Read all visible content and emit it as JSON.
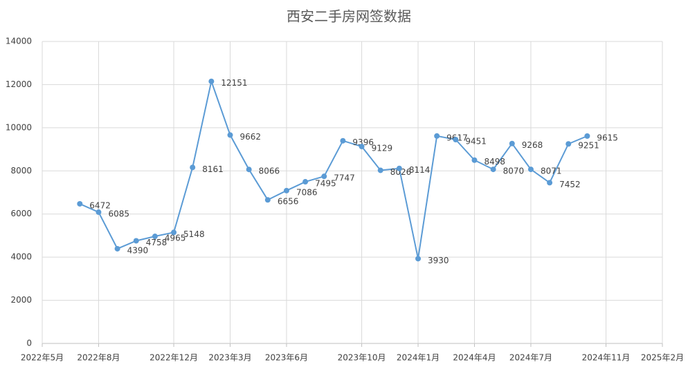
{
  "chart_data": {
    "type": "line",
    "title": "西安二手房网签数据",
    "x": [
      "2022年7月",
      "2022年8月",
      "2022年9月",
      "2022年10月",
      "2022年11月",
      "2022年12月",
      "2023年1月",
      "2023年2月",
      "2023年3月",
      "2023年4月",
      "2023年5月",
      "2023年6月",
      "2023年7月",
      "2023年8月",
      "2023年9月",
      "2023年10月",
      "2023年11月",
      "2023年12月",
      "2024年1月",
      "2024年2月",
      "2024年3月",
      "2024年4月",
      "2024年5月",
      "2024年6月",
      "2024年7月",
      "2024年8月",
      "2024年9月",
      "2024年10月"
    ],
    "values": [
      6472,
      6085,
      4390,
      4758,
      4965,
      5148,
      8161,
      12151,
      9662,
      8066,
      6656,
      7086,
      7495,
      7747,
      9396,
      9129,
      8026,
      8114,
      3930,
      9617,
      9451,
      8498,
      8070,
      9268,
      8071,
      7452,
      9251,
      9615
    ],
    "color": "#5b9bd5",
    "xlim": [
      "2022年5月",
      "2025年2月"
    ],
    "xticks": [
      "2022年5月",
      "2022年8月",
      "2022年12月",
      "2023年3月",
      "2023年6月",
      "2023年10月",
      "2024年1月",
      "2024年4月",
      "2024年7月",
      "2024年11月",
      "2025年2月"
    ],
    "ylim": [
      0,
      14000
    ],
    "yticks": [
      0,
      2000,
      4000,
      6000,
      8000,
      10000,
      12000,
      14000
    ],
    "grid": true
  }
}
